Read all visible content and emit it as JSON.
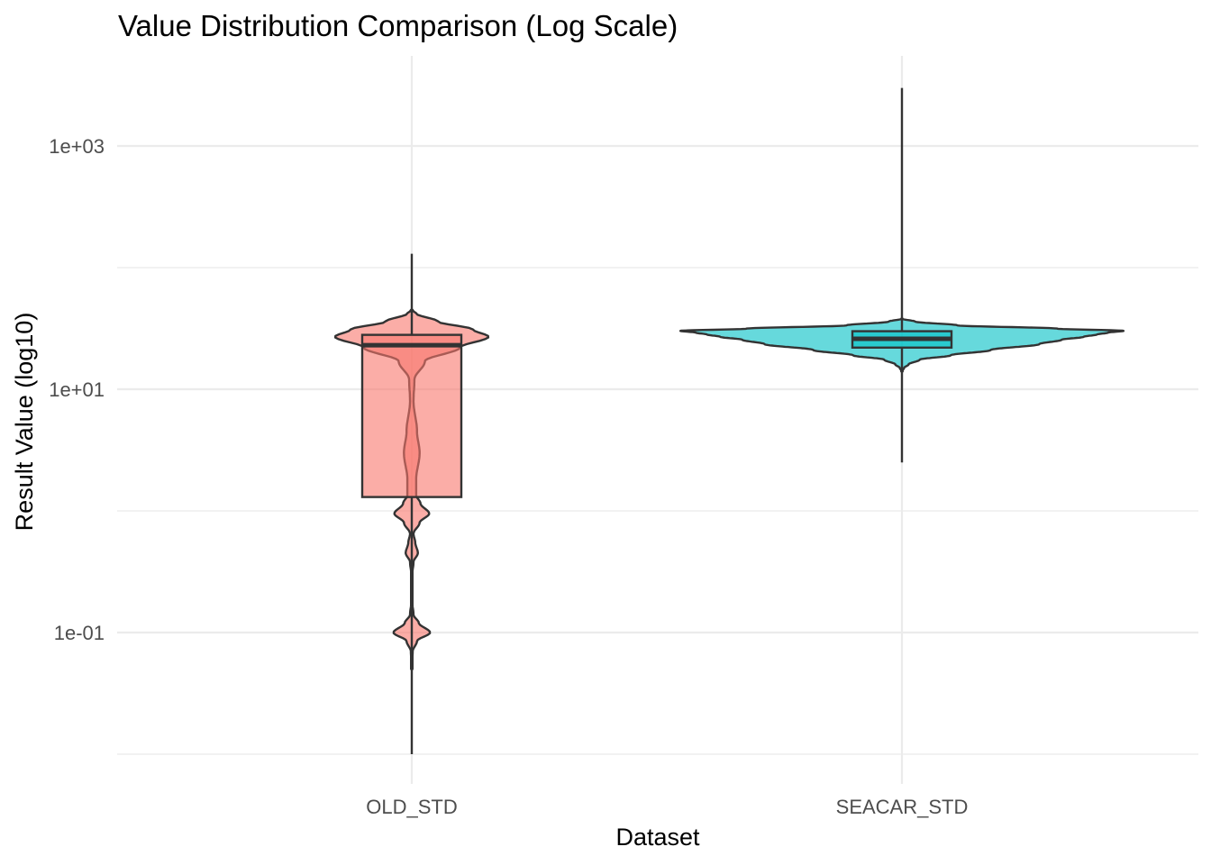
{
  "chart_data": {
    "type": "violin",
    "title": "Value Distribution Comparison (Log Scale)",
    "xlabel": "Dataset",
    "ylabel": "Result Value (log10)",
    "y_scale": "log10",
    "ylim": [
      0.01,
      5000
    ],
    "y_ticks": [
      {
        "value": 0.1,
        "label": "1e-01"
      },
      {
        "value": 10,
        "label": "1e+01"
      },
      {
        "value": 1000,
        "label": "1e+03"
      }
    ],
    "y_minor_ticks": [
      0.01,
      1,
      100
    ],
    "grid": true,
    "legend": "none",
    "categories": [
      "OLD_STD",
      "SEACAR_STD"
    ],
    "series": [
      {
        "category": "OLD_STD",
        "color": "#F8766D",
        "box": {
          "q1": 1.3,
          "median": 23,
          "q3": 28,
          "whisker_low": 0.01,
          "whisker_high": 130
        },
        "violin_range": [
          0.05,
          45
        ],
        "density_profile": [
          [
            0.05,
            0.0
          ],
          [
            0.07,
            0.01
          ],
          [
            0.085,
            0.06
          ],
          [
            0.1,
            0.21
          ],
          [
            0.12,
            0.08
          ],
          [
            0.14,
            0.02
          ],
          [
            0.18,
            0.005
          ],
          [
            0.3,
            0.005
          ],
          [
            0.38,
            0.02
          ],
          [
            0.45,
            0.07
          ],
          [
            0.55,
            0.04
          ],
          [
            0.65,
            0.02
          ],
          [
            0.8,
            0.09
          ],
          [
            0.95,
            0.2
          ],
          [
            1.15,
            0.1
          ],
          [
            1.35,
            0.05
          ],
          [
            1.8,
            0.05
          ],
          [
            3.0,
            0.09
          ],
          [
            4.5,
            0.06
          ],
          [
            8.0,
            0.02
          ],
          [
            12.0,
            0.03
          ],
          [
            17.0,
            0.15
          ],
          [
            22.0,
            0.55
          ],
          [
            27.0,
            0.88
          ],
          [
            31.0,
            0.7
          ],
          [
            36.0,
            0.3
          ],
          [
            42.0,
            0.05
          ],
          [
            45.0,
            0.0
          ]
        ]
      },
      {
        "category": "SEACAR_STD",
        "color": "#00BFC4",
        "box": {
          "q1": 22,
          "median": 26,
          "q3": 30,
          "whisker_low": 2.5,
          "whisker_high": 3000
        },
        "violin_range": [
          14,
          38
        ],
        "density_profile": [
          [
            14.0,
            0.0
          ],
          [
            15.0,
            0.01
          ],
          [
            16.0,
            0.03
          ],
          [
            17.5,
            0.08
          ],
          [
            19.0,
            0.22
          ],
          [
            21.0,
            0.4
          ],
          [
            23.5,
            0.62
          ],
          [
            25.5,
            0.72
          ],
          [
            27.0,
            0.82
          ],
          [
            28.2,
            0.88
          ],
          [
            29.2,
            0.93
          ],
          [
            30.2,
            1.0
          ],
          [
            31.5,
            0.7
          ],
          [
            33.5,
            0.25
          ],
          [
            36.0,
            0.06
          ],
          [
            38.0,
            0.0
          ]
        ]
      }
    ]
  }
}
